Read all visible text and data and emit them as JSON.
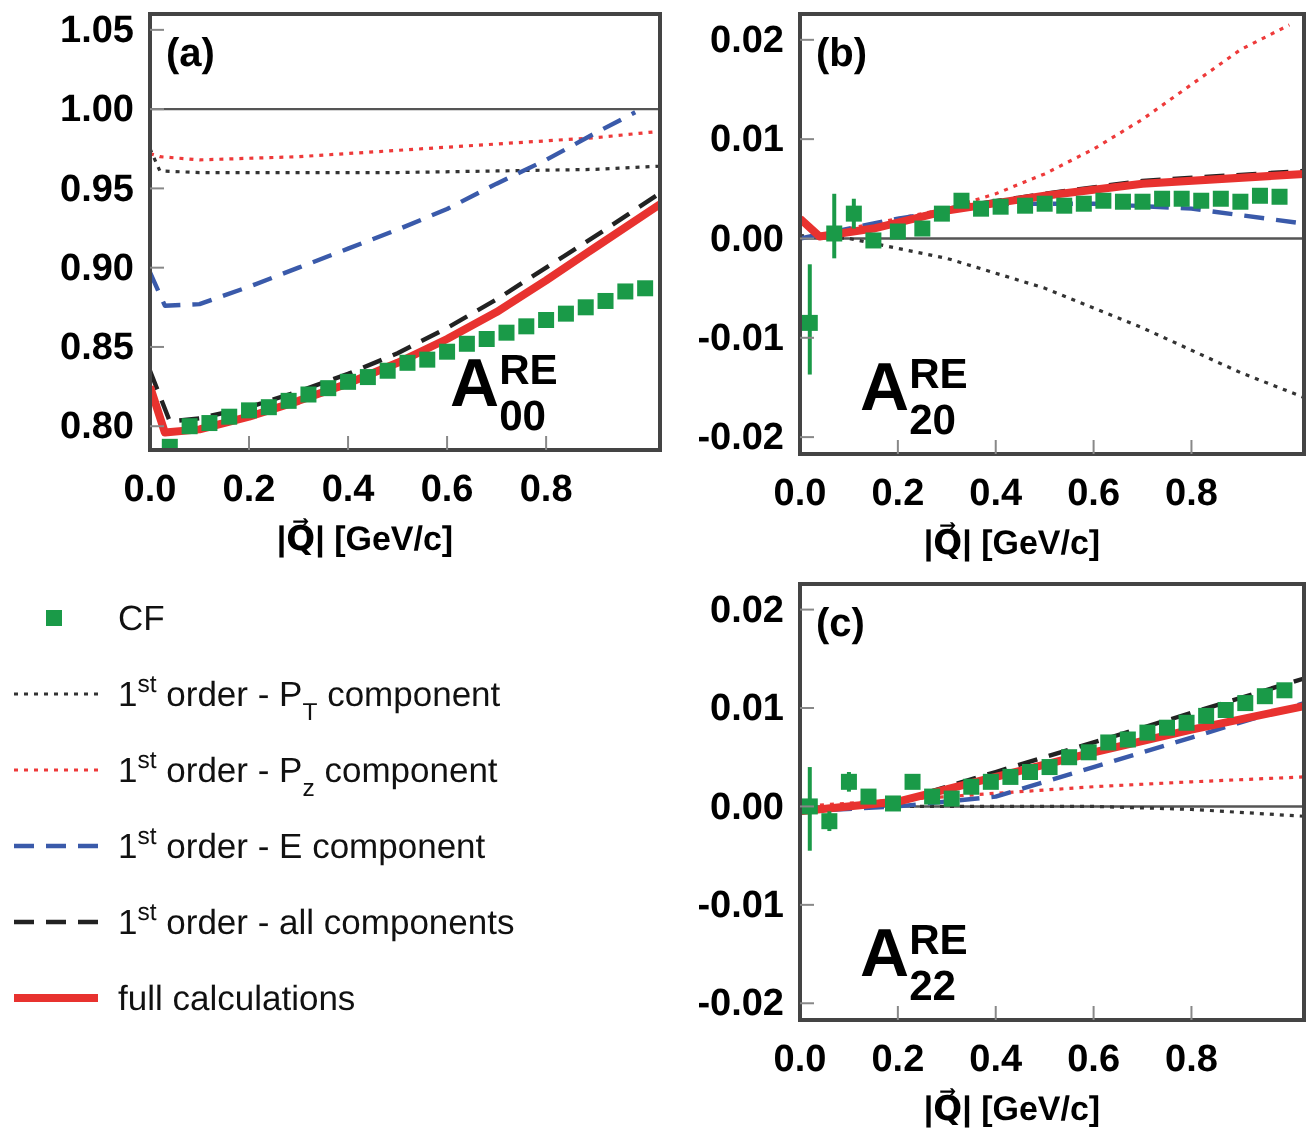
{
  "chart_data": [
    {
      "type": "line",
      "xlabel": "|Q⃗| [GeV/c]",
      "annotations": [
        "(a)",
        "A$^{RE}$$_{00}$"
      ],
      "xlim": [
        0,
        1.03
      ],
      "ylim": [
        0.785,
        1.06
      ],
      "xticks": [
        {
          "value": 0,
          "label": "0.0"
        },
        {
          "value": 0.2,
          "label": "0.2"
        },
        {
          "value": 0.4,
          "label": "0.4"
        },
        {
          "value": 0.6,
          "label": "0.6"
        },
        {
          "value": 0.8,
          "label": "0.8"
        }
      ],
      "yticks": [
        {
          "value": 0.8,
          "label": "0.80"
        },
        {
          "value": 0.85,
          "label": "0.85"
        },
        {
          "value": 0.9,
          "label": "0.90"
        },
        {
          "value": 0.95,
          "label": "0.95"
        },
        {
          "value": 1.0,
          "label": "1.00"
        },
        {
          "value": 1.05,
          "label": "1.05"
        }
      ],
      "grid": false,
      "legend": "bottom",
      "ref_lines": [
        {
          "axis": "y",
          "value": 1.0,
          "color": "#555555"
        }
      ],
      "series": [
        {
          "name": "CF",
          "type": "scatter",
          "marker": "square",
          "color": "#1a9a48",
          "x": [
            0.04,
            0.08,
            0.12,
            0.16,
            0.2,
            0.24,
            0.28,
            0.32,
            0.36,
            0.4,
            0.44,
            0.48,
            0.52,
            0.56,
            0.6,
            0.64,
            0.68,
            0.72,
            0.76,
            0.8,
            0.84,
            0.88,
            0.92,
            0.96,
            1.0
          ],
          "values": [
            0.787,
            0.8,
            0.802,
            0.806,
            0.81,
            0.812,
            0.816,
            0.82,
            0.824,
            0.828,
            0.831,
            0.835,
            0.84,
            0.842,
            0.847,
            0.852,
            0.855,
            0.859,
            0.863,
            0.867,
            0.871,
            0.875,
            0.879,
            0.885,
            0.887
          ]
        },
        {
          "name": "1$^{st}$ order - P$_{T}$ component",
          "line_style": "dotted",
          "marker": "none",
          "color": "#333333",
          "x": [
            0,
            0.02,
            0.1,
            0.3,
            0.5,
            0.7,
            0.9,
            1.03
          ],
          "values": [
            0.975,
            0.961,
            0.96,
            0.96,
            0.96,
            0.961,
            0.962,
            0.964
          ]
        },
        {
          "name": "1$^{st}$ order - P$_{z}$ component",
          "line_style": "dotted",
          "marker": "none",
          "color": "#ee3a3a",
          "x": [
            0,
            0.02,
            0.1,
            0.3,
            0.5,
            0.7,
            0.9,
            1.03
          ],
          "values": [
            0.972,
            0.97,
            0.968,
            0.97,
            0.974,
            0.978,
            0.982,
            0.986
          ]
        },
        {
          "name": "1$^{st}$ order - E component",
          "line_style": "dashed",
          "marker": "none",
          "color": "#3a5aaa",
          "x": [
            0,
            0.03,
            0.1,
            0.2,
            0.3,
            0.4,
            0.5,
            0.6,
            0.7,
            0.8,
            0.9,
            0.98
          ],
          "values": [
            0.897,
            0.876,
            0.877,
            0.888,
            0.9,
            0.912,
            0.924,
            0.937,
            0.953,
            0.968,
            0.985,
            0.998
          ]
        },
        {
          "name": "1$^{st}$ order - all components",
          "line_style": "dashed",
          "marker": "none",
          "color": "#222222",
          "x": [
            0,
            0.04,
            0.1,
            0.2,
            0.3,
            0.4,
            0.5,
            0.6,
            0.7,
            0.8,
            0.9,
            1.03
          ],
          "values": [
            0.835,
            0.803,
            0.805,
            0.812,
            0.822,
            0.833,
            0.846,
            0.862,
            0.88,
            0.9,
            0.92,
            0.947
          ]
        },
        {
          "name": "full calculations",
          "line_style": "solid",
          "marker": "none",
          "color": "#e8322f",
          "x": [
            0,
            0.03,
            0.1,
            0.2,
            0.3,
            0.4,
            0.5,
            0.6,
            0.7,
            0.8,
            0.9,
            1.03
          ],
          "values": [
            0.825,
            0.796,
            0.798,
            0.806,
            0.816,
            0.827,
            0.84,
            0.855,
            0.872,
            0.892,
            0.913,
            0.94
          ]
        }
      ]
    },
    {
      "type": "line",
      "xlabel": "|Q⃗| [GeV/c]",
      "annotations": [
        "(b)",
        "A$^{RE}$$_{20}$"
      ],
      "xlim": [
        0,
        1.03
      ],
      "ylim": [
        -0.0217,
        0.0226
      ],
      "xticks": [
        {
          "value": 0,
          "label": "0.0"
        },
        {
          "value": 0.2,
          "label": "0.2"
        },
        {
          "value": 0.4,
          "label": "0.4"
        },
        {
          "value": 0.6,
          "label": "0.6"
        },
        {
          "value": 0.8,
          "label": "0.8"
        }
      ],
      "yticks": [
        {
          "value": -0.02,
          "label": "-0.02"
        },
        {
          "value": -0.01,
          "label": "-0.01"
        },
        {
          "value": 0,
          "label": "0.00"
        },
        {
          "value": 0.01,
          "label": "0.01"
        },
        {
          "value": 0.02,
          "label": "0.02"
        }
      ],
      "grid": false,
      "ref_lines": [
        {
          "axis": "y",
          "value": 0,
          "color": "#555555"
        }
      ],
      "series": [
        {
          "type": "scatter",
          "marker": "square",
          "color": "#1a9a48",
          "x": [
            0.02,
            0.07,
            0.11,
            0.15,
            0.2,
            0.25,
            0.29,
            0.33,
            0.37,
            0.41,
            0.46,
            0.5,
            0.54,
            0.58,
            0.62,
            0.66,
            0.7,
            0.74,
            0.78,
            0.82,
            0.86,
            0.9,
            0.94,
            0.98
          ],
          "values": [
            -0.0085,
            0.0005,
            0.0025,
            -0.0002,
            0.0007,
            0.001,
            0.0025,
            0.0038,
            0.003,
            0.0032,
            0.0033,
            0.0035,
            0.0033,
            0.0035,
            0.0038,
            0.0037,
            0.0037,
            0.004,
            0.004,
            0.0038,
            0.004,
            0.0037,
            0.0043,
            0.0042
          ],
          "errors": [
            [
              -0.0137,
              -0.0026
            ],
            [
              -0.002,
              0.0045
            ],
            [
              0.001,
              0.004
            ],
            null,
            null,
            null,
            null,
            null,
            null,
            null,
            null,
            null,
            null,
            null,
            null,
            null,
            null,
            null,
            null,
            null,
            null,
            null,
            null,
            null
          ]
        },
        {
          "line_style": "dotted",
          "marker": "none",
          "color": "#333333",
          "x": [
            0,
            0.1,
            0.3,
            0.5,
            0.7,
            0.9,
            1.03
          ],
          "values": [
            0.0003,
            0,
            -0.002,
            -0.005,
            -0.009,
            -0.0135,
            -0.016
          ]
        },
        {
          "line_style": "dotted",
          "marker": "none",
          "color": "#ee3a3a",
          "x": [
            0,
            0.1,
            0.2,
            0.3,
            0.4,
            0.5,
            0.6,
            0.7,
            0.8,
            0.9,
            1.0
          ],
          "values": [
            0,
            0.001,
            0.002,
            0.003,
            0.0045,
            0.0065,
            0.009,
            0.012,
            0.0155,
            0.019,
            0.0215
          ]
        },
        {
          "line_style": "dashed",
          "marker": "none",
          "color": "#3a5aaa",
          "x": [
            0,
            0.2,
            0.4,
            0.6,
            0.8,
            1.03
          ],
          "values": [
            0,
            0.002,
            0.0035,
            0.0035,
            0.003,
            0.0015
          ]
        },
        {
          "line_style": "dashed",
          "marker": "none",
          "color": "#222222",
          "x": [
            0,
            0.04,
            0.15,
            0.3,
            0.5,
            0.7,
            1.03
          ],
          "values": [
            0.002,
            0.0003,
            0.001,
            0.003,
            0.0045,
            0.0058,
            0.0068
          ]
        },
        {
          "line_style": "solid",
          "marker": "none",
          "color": "#e8322f",
          "x": [
            0,
            0.04,
            0.15,
            0.3,
            0.5,
            0.7,
            1.03
          ],
          "values": [
            0.002,
            0.0002,
            0.001,
            0.0028,
            0.0043,
            0.0055,
            0.0065
          ]
        }
      ]
    },
    {
      "type": "line",
      "xlabel": "|Q⃗| [GeV/c]",
      "annotations": [
        "(c)",
        "A$^{RE}$$_{22}$"
      ],
      "xlim": [
        0,
        1.03
      ],
      "ylim": [
        -0.0217,
        0.0226
      ],
      "xticks": [
        {
          "value": 0,
          "label": "0.0"
        },
        {
          "value": 0.2,
          "label": "0.2"
        },
        {
          "value": 0.4,
          "label": "0.4"
        },
        {
          "value": 0.6,
          "label": "0.6"
        },
        {
          "value": 0.8,
          "label": "0.8"
        }
      ],
      "yticks": [
        {
          "value": -0.02,
          "label": "-0.02"
        },
        {
          "value": -0.01,
          "label": "-0.01"
        },
        {
          "value": 0,
          "label": "0.00"
        },
        {
          "value": 0.01,
          "label": "0.01"
        },
        {
          "value": 0.02,
          "label": "0.02"
        }
      ],
      "grid": false,
      "ref_lines": [
        {
          "axis": "y",
          "value": 0,
          "color": "#555555"
        }
      ],
      "series": [
        {
          "type": "scatter",
          "marker": "square",
          "color": "#1a9a48",
          "x": [
            0.02,
            0.06,
            0.1,
            0.14,
            0.19,
            0.23,
            0.27,
            0.31,
            0.35,
            0.39,
            0.43,
            0.47,
            0.51,
            0.55,
            0.59,
            0.63,
            0.67,
            0.71,
            0.75,
            0.79,
            0.83,
            0.87,
            0.91,
            0.95,
            0.99
          ],
          "values": [
            0,
            -0.0015,
            0.0025,
            0.001,
            0.0003,
            0.0025,
            0.001,
            0.0008,
            0.002,
            0.0025,
            0.003,
            0.0035,
            0.004,
            0.005,
            0.0055,
            0.0065,
            0.0068,
            0.0075,
            0.008,
            0.0085,
            0.0092,
            0.0098,
            0.0105,
            0.0112,
            0.0118
          ],
          "errors": [
            [
              -0.0045,
              0.004
            ],
            0.001,
            0.001,
            null,
            null,
            null,
            null,
            null,
            null,
            null,
            null,
            null,
            null,
            null,
            null,
            null,
            null,
            null,
            null,
            null,
            null,
            null,
            null,
            null,
            null
          ]
        },
        {
          "line_style": "dotted",
          "marker": "none",
          "color": "#333333",
          "x": [
            0,
            0.3,
            0.6,
            0.8,
            1.03
          ],
          "values": [
            0,
            0,
            0,
            -0.0003,
            -0.001
          ]
        },
        {
          "line_style": "dotted",
          "marker": "none",
          "color": "#ee3a3a",
          "x": [
            0,
            0.3,
            0.6,
            0.8,
            1.03
          ],
          "values": [
            0,
            0.001,
            0.002,
            0.0025,
            0.003
          ]
        },
        {
          "line_style": "dashed",
          "marker": "none",
          "color": "#3a5aaa",
          "x": [
            0,
            0.2,
            0.4,
            0.6,
            0.8,
            1.03
          ],
          "values": [
            -0.0005,
            0,
            0.001,
            0.004,
            0.007,
            0.0105
          ]
        },
        {
          "line_style": "dashed",
          "marker": "none",
          "color": "#222222",
          "x": [
            0,
            0.2,
            0.4,
            0.6,
            0.8,
            1.03
          ],
          "values": [
            -0.0005,
            0.0005,
            0.0035,
            0.0065,
            0.0095,
            0.013
          ]
        },
        {
          "line_style": "solid",
          "marker": "none",
          "color": "#e8322f",
          "x": [
            0,
            0.2,
            0.4,
            0.6,
            0.8,
            1.03
          ],
          "values": [
            -0.0005,
            0.0005,
            0.003,
            0.0055,
            0.0078,
            0.0102
          ]
        }
      ]
    }
  ]
}
